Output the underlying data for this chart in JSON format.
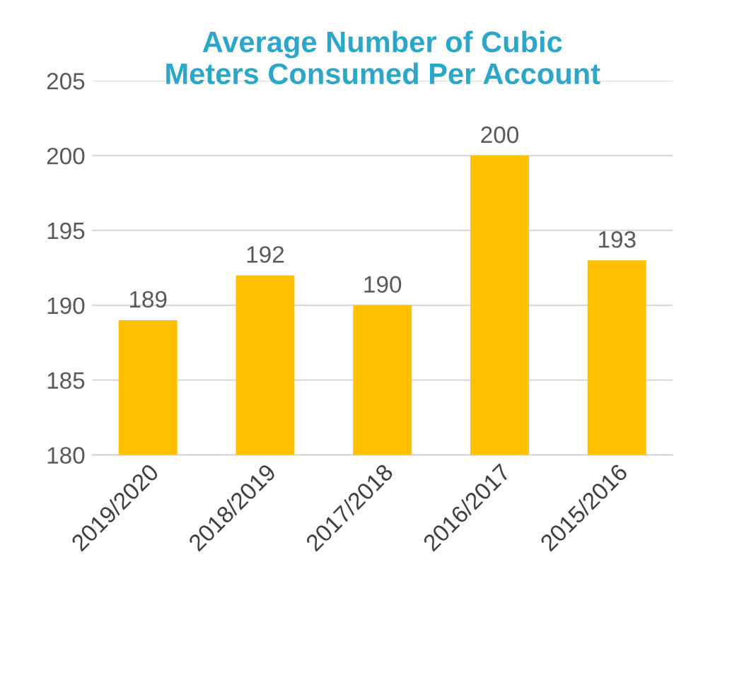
{
  "chart_data": {
    "type": "bar",
    "title": "Average Number of Cubic\nMeters Consumed Per Account",
    "categories": [
      "2019/2020",
      "2018/2019",
      "2017/2018",
      "2016/2017",
      "2015/2016"
    ],
    "values": [
      189,
      192,
      190,
      200,
      193
    ],
    "color": "#ffc000",
    "ylim": [
      180,
      205
    ],
    "yticks": [
      180,
      185,
      190,
      195,
      200,
      205
    ],
    "grid": "y",
    "data_labels": true
  }
}
